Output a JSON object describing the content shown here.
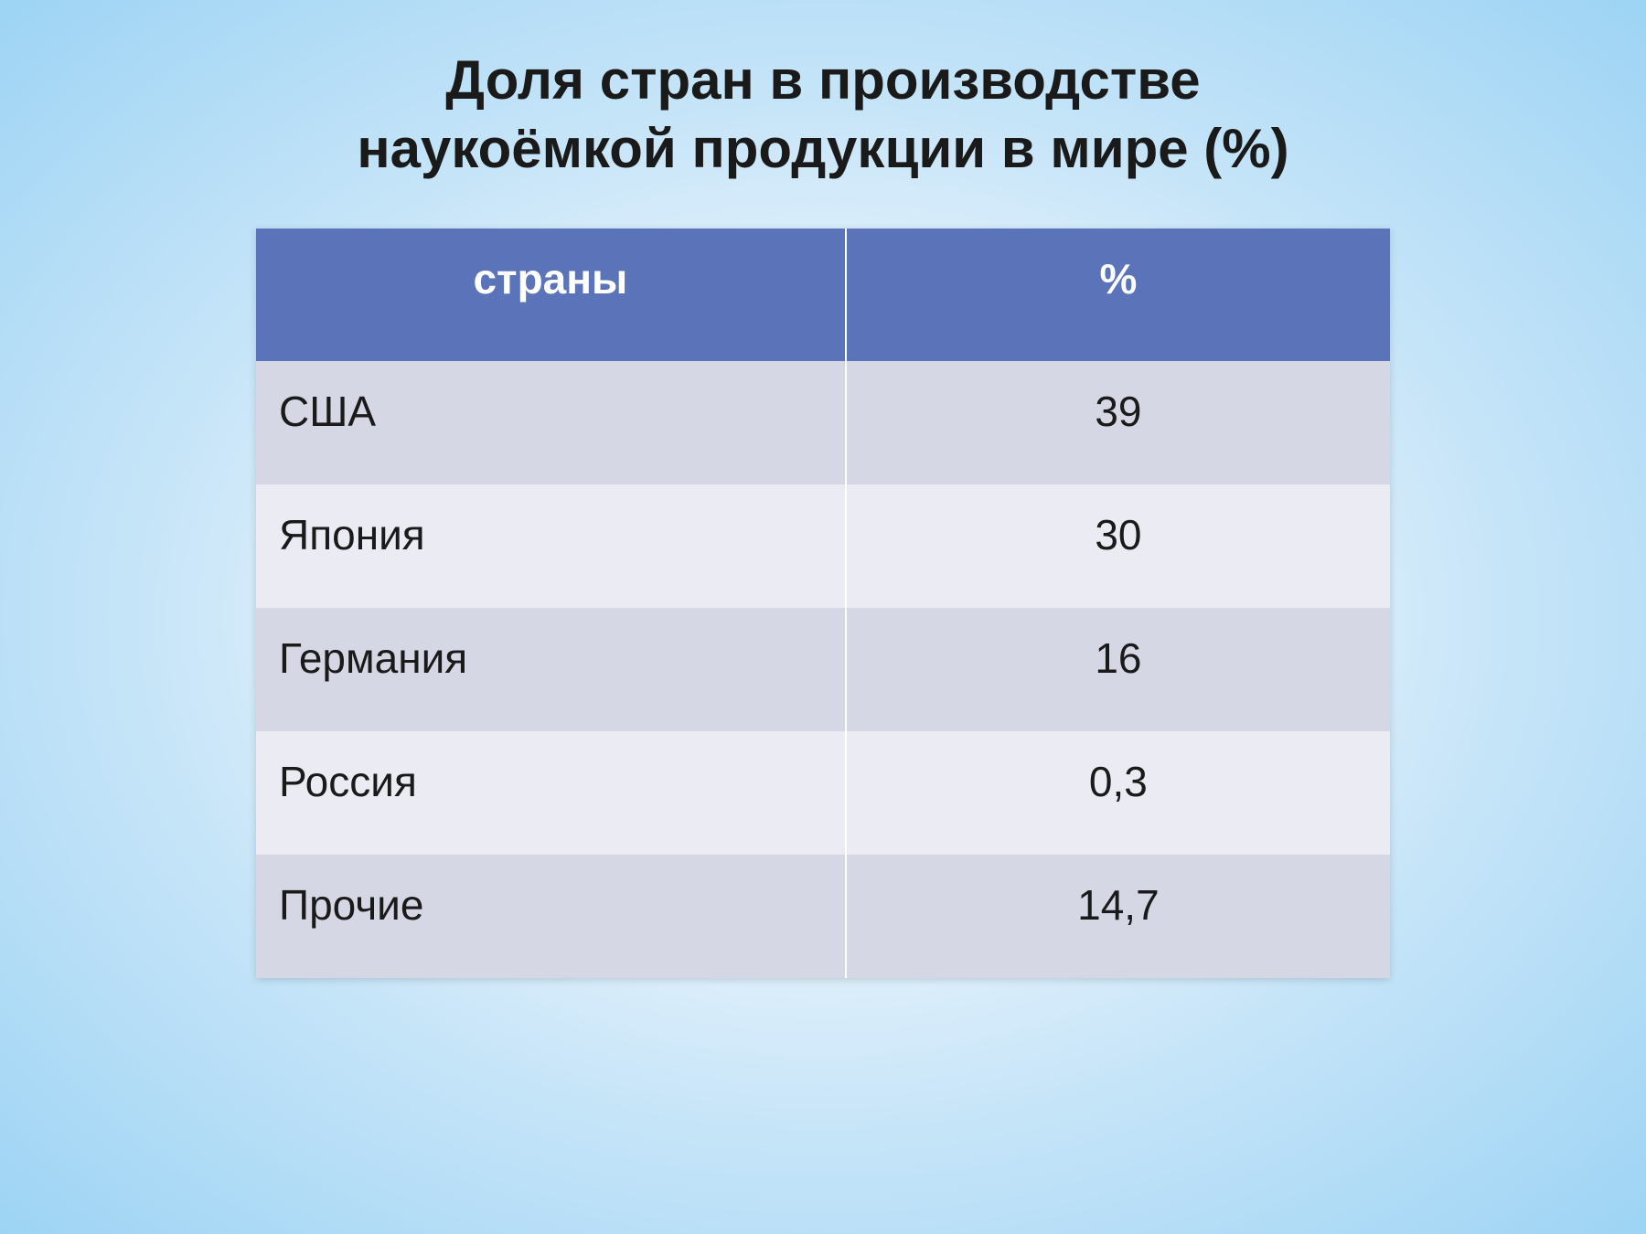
{
  "title_line1": "Доля стран в производстве",
  "title_line2": "наукоёмкой продукции в мире (%)",
  "table": {
    "type": "table",
    "columns": [
      {
        "key": "country",
        "label": "страны",
        "width_pct": 52,
        "align": "left"
      },
      {
        "key": "percent",
        "label": "%",
        "width_pct": 48,
        "align": "center"
      }
    ],
    "rows": [
      {
        "country": "США",
        "percent": "39"
      },
      {
        "country": "Япония",
        "percent": "30"
      },
      {
        "country": "Германия",
        "percent": "16"
      },
      {
        "country": "Россия",
        "percent": "0,3"
      },
      {
        "country": "Прочие",
        "percent": "14,7"
      }
    ],
    "header_bg": "#5b73b8",
    "header_text_color": "#ffffff",
    "row_odd_bg": "#d5d7e5",
    "row_even_bg": "#ebecf3",
    "cell_divider_color": "#ffffff",
    "text_color": "#1a1a1a",
    "header_fontsize": 46,
    "cell_fontsize": 46,
    "title_fontsize": 60,
    "title_color": "#1a1a1a",
    "background_gradient": [
      "#ffffff",
      "#eaf4fc",
      "#c5e4f8",
      "#9dd4f4"
    ]
  }
}
